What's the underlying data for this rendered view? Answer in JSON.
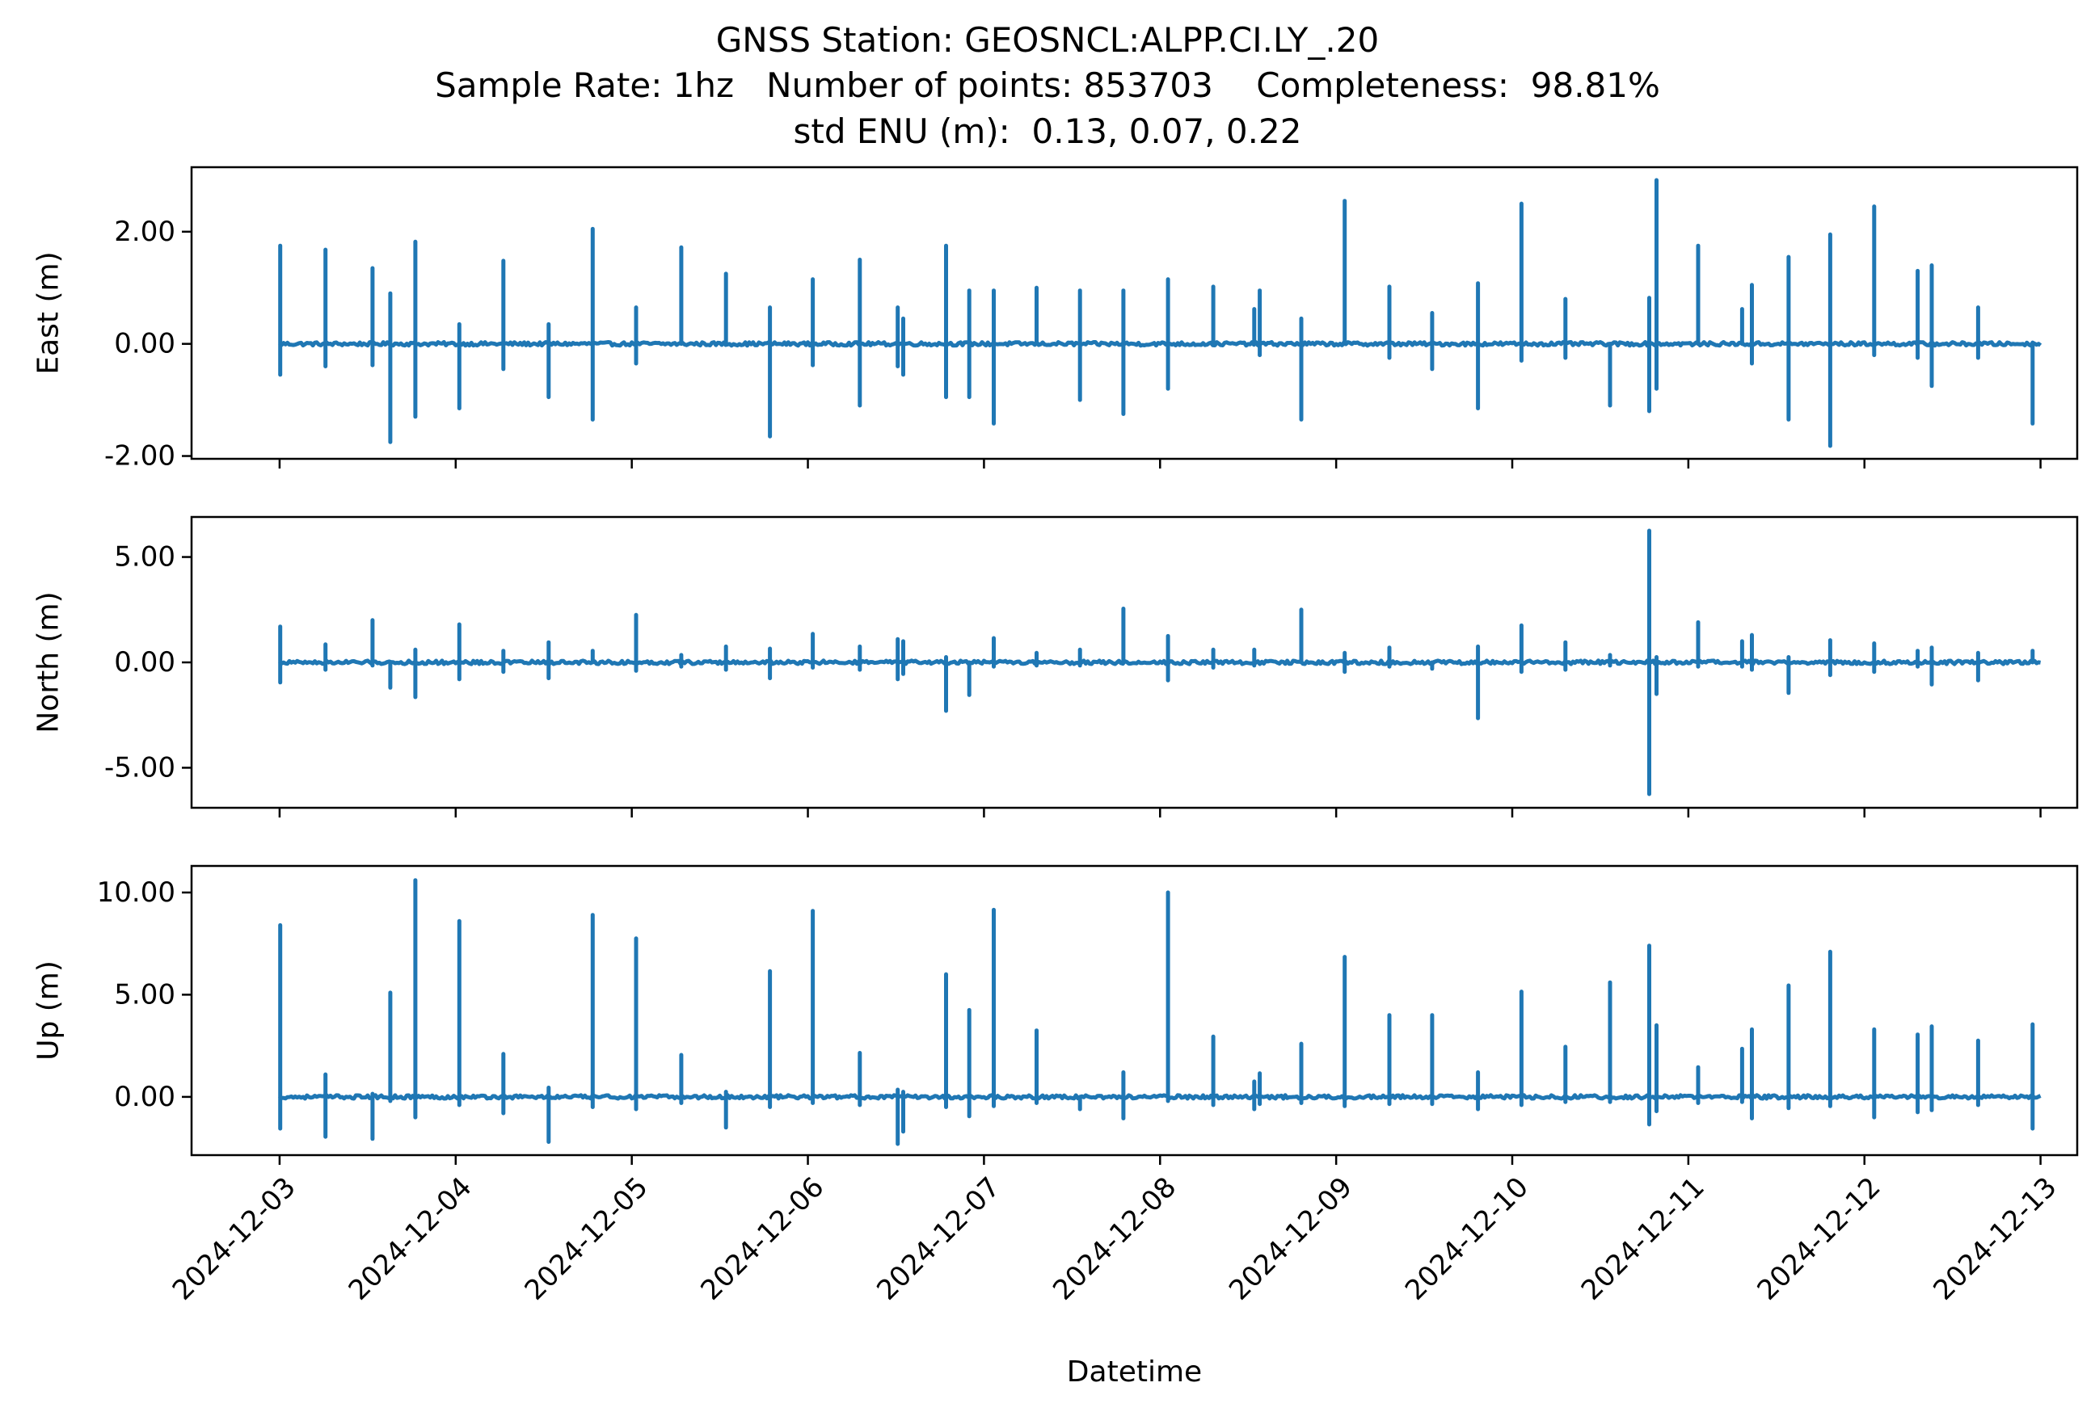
{
  "figure": {
    "title_lines": [
      "GNSS Station: GEOSNCL:ALPP.CI.LY_.20",
      "Sample Rate: 1hz   Number of points: 853703    Completeness:  98.81%",
      "std ENU (m):  0.13, 0.07, 0.22"
    ],
    "xlabel": "Datetime",
    "line_color": "#1f77b4"
  },
  "chart_data": [
    {
      "type": "line",
      "ylabel": "East (m)",
      "ylim": [
        -2.05,
        3.15
      ],
      "yticks": [
        -2.0,
        0.0,
        2.0
      ],
      "ytick_labels": [
        "-2.00",
        "0.00",
        "2.00"
      ],
      "xlim": [
        "2024-12-02T12:00",
        "2024-12-13T05:00"
      ],
      "spikes": [
        {
          "t": "2024-12-03T00:05",
          "max": 1.75,
          "min": -0.55
        },
        {
          "t": "2024-12-03T06:15",
          "max": 1.68,
          "min": -0.4
        },
        {
          "t": "2024-12-03T12:40",
          "max": 1.35,
          "min": -0.38
        },
        {
          "t": "2024-12-03T15:05",
          "max": 0.9,
          "min": -1.75
        },
        {
          "t": "2024-12-03T18:30",
          "max": 1.82,
          "min": -1.3
        },
        {
          "t": "2024-12-04T00:30",
          "max": 0.35,
          "min": -1.15
        },
        {
          "t": "2024-12-04T06:30",
          "max": 1.48,
          "min": -0.45
        },
        {
          "t": "2024-12-04T12:40",
          "max": 0.35,
          "min": -0.95
        },
        {
          "t": "2024-12-04T18:40",
          "max": 2.05,
          "min": -1.35
        },
        {
          "t": "2024-12-05T00:35",
          "max": 0.65,
          "min": -0.35
        },
        {
          "t": "2024-12-05T06:45",
          "max": 1.72,
          "min": 0.0
        },
        {
          "t": "2024-12-05T12:50",
          "max": 1.25,
          "min": 0.0
        },
        {
          "t": "2024-12-05T18:50",
          "max": 0.65,
          "min": -1.65
        },
        {
          "t": "2024-12-06T00:40",
          "max": 1.15,
          "min": -0.38
        },
        {
          "t": "2024-12-06T07:05",
          "max": 1.5,
          "min": -1.1
        },
        {
          "t": "2024-12-06T12:15",
          "max": 0.65,
          "min": -0.4
        },
        {
          "t": "2024-12-06T13:00",
          "max": 0.45,
          "min": -0.55
        },
        {
          "t": "2024-12-06T18:50",
          "max": 1.75,
          "min": -0.95
        },
        {
          "t": "2024-12-06T22:00",
          "max": 0.95,
          "min": -0.95
        },
        {
          "t": "2024-12-07T01:20",
          "max": 0.95,
          "min": -1.42
        },
        {
          "t": "2024-12-07T07:10",
          "max": 1.0,
          "min": 0.0
        },
        {
          "t": "2024-12-07T13:05",
          "max": 0.95,
          "min": -1.0
        },
        {
          "t": "2024-12-07T19:00",
          "max": 0.95,
          "min": -1.25
        },
        {
          "t": "2024-12-08T01:05",
          "max": 1.15,
          "min": -0.8
        },
        {
          "t": "2024-12-08T07:15",
          "max": 1.02,
          "min": 0.0
        },
        {
          "t": "2024-12-08T12:50",
          "max": 0.62,
          "min": 0.0
        },
        {
          "t": "2024-12-08T13:35",
          "max": 0.95,
          "min": -0.2
        },
        {
          "t": "2024-12-08T19:15",
          "max": 0.45,
          "min": -1.35
        },
        {
          "t": "2024-12-09T01:10",
          "max": 2.55,
          "min": 0.0
        },
        {
          "t": "2024-12-09T07:15",
          "max": 1.02,
          "min": -0.25
        },
        {
          "t": "2024-12-09T13:05",
          "max": 0.55,
          "min": -0.45
        },
        {
          "t": "2024-12-09T19:20",
          "max": 1.08,
          "min": -1.15
        },
        {
          "t": "2024-12-10T01:15",
          "max": 2.5,
          "min": -0.3
        },
        {
          "t": "2024-12-10T07:15",
          "max": 0.8,
          "min": -0.25
        },
        {
          "t": "2024-12-10T13:20",
          "max": 0.0,
          "min": -1.1
        },
        {
          "t": "2024-12-10T18:40",
          "max": 0.82,
          "min": -1.2
        },
        {
          "t": "2024-12-10T19:40",
          "max": 2.92,
          "min": -0.8
        },
        {
          "t": "2024-12-11T01:20",
          "max": 1.75,
          "min": 0.0
        },
        {
          "t": "2024-12-11T07:20",
          "max": 0.62,
          "min": 0.0
        },
        {
          "t": "2024-12-11T08:40",
          "max": 1.05,
          "min": -0.35
        },
        {
          "t": "2024-12-11T13:40",
          "max": 1.55,
          "min": -1.35
        },
        {
          "t": "2024-12-11T19:20",
          "max": 1.95,
          "min": -1.82
        },
        {
          "t": "2024-12-12T01:20",
          "max": 2.45,
          "min": -0.2
        },
        {
          "t": "2024-12-12T07:15",
          "max": 1.3,
          "min": -0.25
        },
        {
          "t": "2024-12-12T09:10",
          "max": 1.4,
          "min": -0.75
        },
        {
          "t": "2024-12-12T15:30",
          "max": 0.65,
          "min": -0.25
        },
        {
          "t": "2024-12-12T22:55",
          "max": 0.0,
          "min": -1.42
        }
      ]
    },
    {
      "type": "line",
      "ylabel": "North (m)",
      "ylim": [
        -6.9,
        6.9
      ],
      "yticks": [
        -5.0,
        0.0,
        5.0
      ],
      "ytick_labels": [
        "-5.00",
        "0.00",
        "5.00"
      ],
      "xlim": [
        "2024-12-02T12:00",
        "2024-12-13T05:00"
      ],
      "spikes": [
        {
          "t": "2024-12-03T00:05",
          "max": 1.7,
          "min": -0.95
        },
        {
          "t": "2024-12-03T06:15",
          "max": 0.85,
          "min": -0.35
        },
        {
          "t": "2024-12-03T12:40",
          "max": 2.0,
          "min": -0.15
        },
        {
          "t": "2024-12-03T15:05",
          "max": 0.0,
          "min": -1.2
        },
        {
          "t": "2024-12-03T18:30",
          "max": 0.6,
          "min": -1.65
        },
        {
          "t": "2024-12-04T00:30",
          "max": 1.8,
          "min": -0.8
        },
        {
          "t": "2024-12-04T06:30",
          "max": 0.55,
          "min": -0.45
        },
        {
          "t": "2024-12-04T12:40",
          "max": 0.95,
          "min": -0.75
        },
        {
          "t": "2024-12-04T18:40",
          "max": 0.55,
          "min": 0.0
        },
        {
          "t": "2024-12-05T00:35",
          "max": 2.25,
          "min": -0.4
        },
        {
          "t": "2024-12-05T06:45",
          "max": 0.35,
          "min": -0.2
        },
        {
          "t": "2024-12-05T12:50",
          "max": 0.75,
          "min": -0.35
        },
        {
          "t": "2024-12-05T18:50",
          "max": 0.65,
          "min": -0.75
        },
        {
          "t": "2024-12-06T00:40",
          "max": 1.35,
          "min": -0.25
        },
        {
          "t": "2024-12-06T07:05",
          "max": 0.75,
          "min": -0.35
        },
        {
          "t": "2024-12-06T12:15",
          "max": 1.1,
          "min": -0.8
        },
        {
          "t": "2024-12-06T13:00",
          "max": 1.0,
          "min": -0.55
        },
        {
          "t": "2024-12-06T18:50",
          "max": 0.25,
          "min": -2.3
        },
        {
          "t": "2024-12-06T22:00",
          "max": 0.0,
          "min": -1.55
        },
        {
          "t": "2024-12-07T01:20",
          "max": 1.15,
          "min": -0.2
        },
        {
          "t": "2024-12-07T07:10",
          "max": 0.45,
          "min": -0.15
        },
        {
          "t": "2024-12-07T13:05",
          "max": 0.6,
          "min": -0.15
        },
        {
          "t": "2024-12-07T19:00",
          "max": 2.55,
          "min": 0.0
        },
        {
          "t": "2024-12-08T01:05",
          "max": 1.25,
          "min": -0.85
        },
        {
          "t": "2024-12-08T07:15",
          "max": 0.6,
          "min": -0.25
        },
        {
          "t": "2024-12-08T12:50",
          "max": 0.6,
          "min": -0.15
        },
        {
          "t": "2024-12-08T19:15",
          "max": 2.5,
          "min": 0.0
        },
        {
          "t": "2024-12-09T01:10",
          "max": 0.45,
          "min": -0.45
        },
        {
          "t": "2024-12-09T07:15",
          "max": 0.7,
          "min": -0.2
        },
        {
          "t": "2024-12-09T13:05",
          "max": 0.0,
          "min": -0.3
        },
        {
          "t": "2024-12-09T19:20",
          "max": 0.75,
          "min": -2.65
        },
        {
          "t": "2024-12-10T01:15",
          "max": 1.75,
          "min": -0.45
        },
        {
          "t": "2024-12-10T07:15",
          "max": 0.95,
          "min": -0.35
        },
        {
          "t": "2024-12-10T13:20",
          "max": 0.35,
          "min": -0.15
        },
        {
          "t": "2024-12-10T18:40",
          "max": 6.25,
          "min": -6.25
        },
        {
          "t": "2024-12-10T19:40",
          "max": 0.25,
          "min": -1.5
        },
        {
          "t": "2024-12-11T01:20",
          "max": 1.9,
          "min": -0.2
        },
        {
          "t": "2024-12-11T07:20",
          "max": 1.0,
          "min": -0.2
        },
        {
          "t": "2024-12-11T08:40",
          "max": 1.3,
          "min": -0.35
        },
        {
          "t": "2024-12-11T13:40",
          "max": 0.25,
          "min": -1.45
        },
        {
          "t": "2024-12-11T19:20",
          "max": 1.05,
          "min": -0.6
        },
        {
          "t": "2024-12-12T01:20",
          "max": 0.9,
          "min": -0.45
        },
        {
          "t": "2024-12-12T07:15",
          "max": 0.55,
          "min": -0.2
        },
        {
          "t": "2024-12-12T09:10",
          "max": 0.7,
          "min": -1.05
        },
        {
          "t": "2024-12-12T15:30",
          "max": 0.45,
          "min": -0.85
        },
        {
          "t": "2024-12-12T22:55",
          "max": 0.55,
          "min": 0.0
        }
      ]
    },
    {
      "type": "line",
      "ylabel": "Up (m)",
      "ylim": [
        -2.85,
        11.3
      ],
      "yticks": [
        0.0,
        5.0,
        10.0
      ],
      "ytick_labels": [
        "0.00",
        "5.00",
        "10.00"
      ],
      "xlim": [
        "2024-12-02T12:00",
        "2024-12-13T05:00"
      ],
      "xticks": [
        "2024-12-03",
        "2024-12-04",
        "2024-12-05",
        "2024-12-06",
        "2024-12-07",
        "2024-12-08",
        "2024-12-09",
        "2024-12-10",
        "2024-12-11",
        "2024-12-12",
        "2024-12-13"
      ],
      "spikes": [
        {
          "t": "2024-12-03T00:05",
          "max": 8.4,
          "min": -1.55
        },
        {
          "t": "2024-12-03T06:15",
          "max": 1.1,
          "min": -1.95
        },
        {
          "t": "2024-12-03T12:40",
          "max": 0.15,
          "min": -2.05
        },
        {
          "t": "2024-12-03T15:05",
          "max": 5.1,
          "min": -0.2
        },
        {
          "t": "2024-12-03T18:30",
          "max": 10.6,
          "min": -1.0
        },
        {
          "t": "2024-12-04T00:30",
          "max": 8.6,
          "min": -0.4
        },
        {
          "t": "2024-12-04T06:30",
          "max": 2.1,
          "min": -0.8
        },
        {
          "t": "2024-12-04T12:40",
          "max": 0.45,
          "min": -2.2
        },
        {
          "t": "2024-12-04T18:40",
          "max": 8.9,
          "min": -0.5
        },
        {
          "t": "2024-12-05T00:35",
          "max": 7.75,
          "min": -0.6
        },
        {
          "t": "2024-12-05T06:45",
          "max": 2.05,
          "min": -0.3
        },
        {
          "t": "2024-12-05T12:50",
          "max": 0.25,
          "min": -1.5
        },
        {
          "t": "2024-12-05T18:50",
          "max": 6.15,
          "min": -0.5
        },
        {
          "t": "2024-12-06T00:40",
          "max": 9.1,
          "min": -0.3
        },
        {
          "t": "2024-12-06T07:05",
          "max": 2.15,
          "min": -0.4
        },
        {
          "t": "2024-12-06T12:15",
          "max": 0.35,
          "min": -2.3
        },
        {
          "t": "2024-12-06T13:00",
          "max": 0.25,
          "min": -1.7
        },
        {
          "t": "2024-12-06T18:50",
          "max": 6.0,
          "min": -0.5
        },
        {
          "t": "2024-12-06T22:00",
          "max": 4.25,
          "min": -0.95
        },
        {
          "t": "2024-12-07T01:20",
          "max": 9.15,
          "min": -0.45
        },
        {
          "t": "2024-12-07T07:10",
          "max": 3.25,
          "min": -0.3
        },
        {
          "t": "2024-12-07T13:05",
          "max": 0.0,
          "min": -0.6
        },
        {
          "t": "2024-12-07T19:00",
          "max": 1.2,
          "min": -1.05
        },
        {
          "t": "2024-12-08T01:05",
          "max": 10.0,
          "min": -0.2
        },
        {
          "t": "2024-12-08T07:15",
          "max": 2.95,
          "min": -0.4
        },
        {
          "t": "2024-12-08T12:50",
          "max": 0.75,
          "min": -0.6
        },
        {
          "t": "2024-12-08T13:35",
          "max": 1.15,
          "min": -0.35
        },
        {
          "t": "2024-12-08T19:15",
          "max": 2.6,
          "min": -0.3
        },
        {
          "t": "2024-12-09T01:10",
          "max": 6.85,
          "min": -0.45
        },
        {
          "t": "2024-12-09T07:15",
          "max": 4.0,
          "min": -0.35
        },
        {
          "t": "2024-12-09T13:05",
          "max": 4.0,
          "min": -0.35
        },
        {
          "t": "2024-12-09T19:20",
          "max": 1.2,
          "min": -0.6
        },
        {
          "t": "2024-12-10T01:15",
          "max": 5.15,
          "min": -0.4
        },
        {
          "t": "2024-12-10T07:15",
          "max": 2.45,
          "min": -0.25
        },
        {
          "t": "2024-12-10T13:20",
          "max": 5.6,
          "min": -0.25
        },
        {
          "t": "2024-12-10T18:40",
          "max": 7.4,
          "min": -1.35
        },
        {
          "t": "2024-12-10T19:40",
          "max": 3.5,
          "min": -0.7
        },
        {
          "t": "2024-12-11T01:20",
          "max": 1.45,
          "min": -0.3
        },
        {
          "t": "2024-12-11T07:20",
          "max": 2.35,
          "min": -0.25
        },
        {
          "t": "2024-12-11T08:40",
          "max": 3.3,
          "min": -1.05
        },
        {
          "t": "2024-12-11T13:40",
          "max": 5.45,
          "min": -0.55
        },
        {
          "t": "2024-12-11T19:20",
          "max": 7.1,
          "min": -0.45
        },
        {
          "t": "2024-12-12T01:20",
          "max": 3.3,
          "min": -1.0
        },
        {
          "t": "2024-12-12T07:15",
          "max": 3.05,
          "min": -0.75
        },
        {
          "t": "2024-12-12T09:10",
          "max": 3.45,
          "min": -0.65
        },
        {
          "t": "2024-12-12T15:30",
          "max": 2.75,
          "min": -0.4
        },
        {
          "t": "2024-12-12T22:55",
          "max": 3.55,
          "min": -1.55
        }
      ]
    }
  ]
}
